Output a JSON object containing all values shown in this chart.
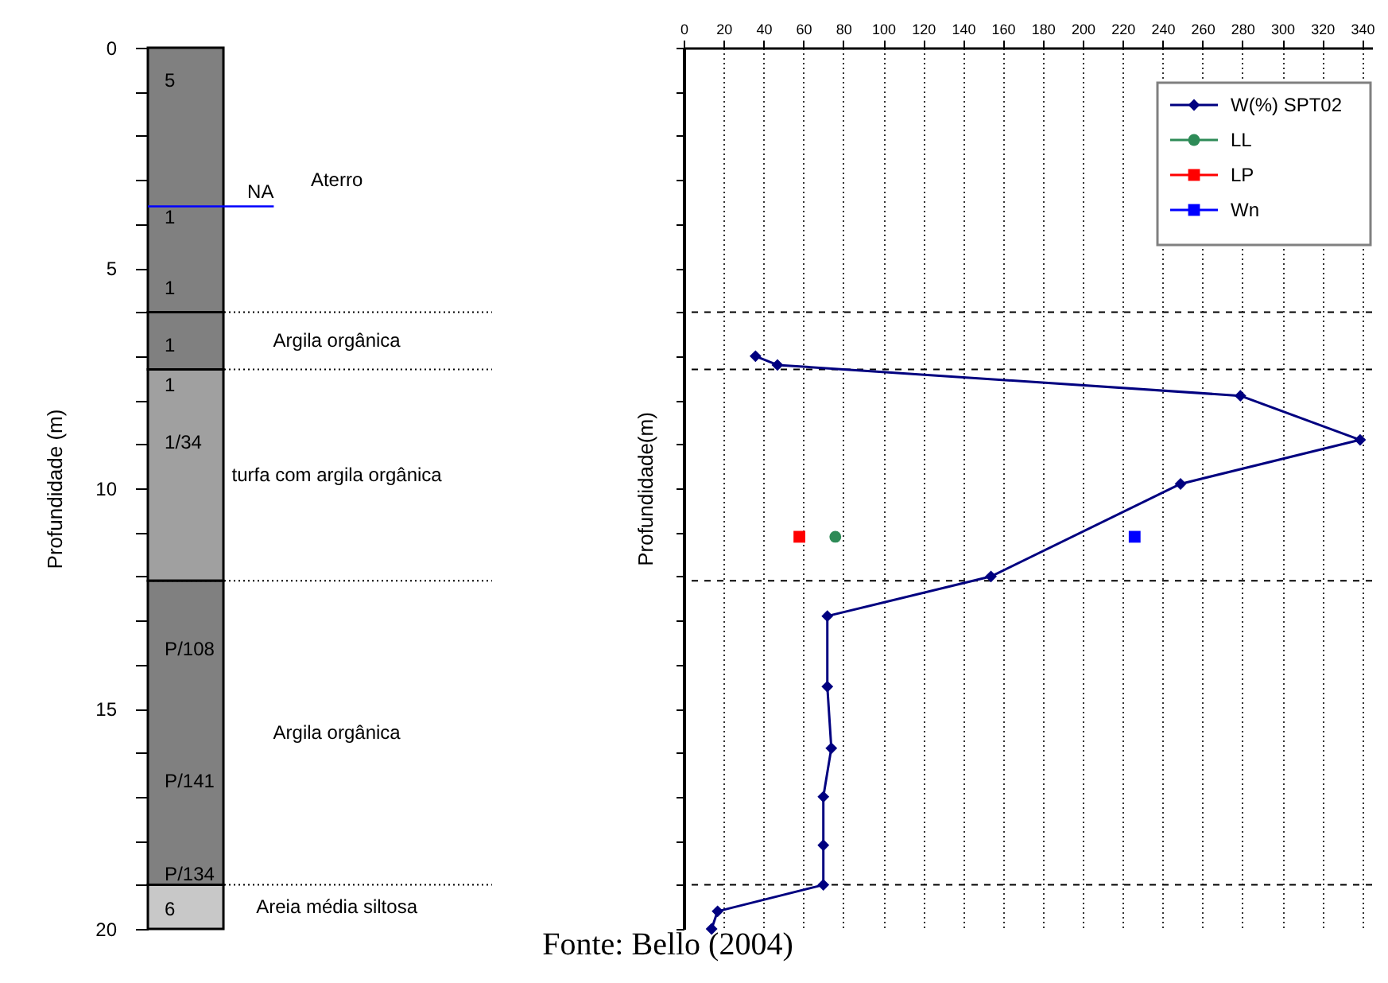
{
  "chart_data": [
    {
      "type": "bar",
      "stacked": true,
      "categories": [
        null
      ],
      "ylabel": "Profundidade (m)",
      "ylim": [
        20,
        0
      ],
      "yticks": [
        0,
        {
          "value": 1,
          "label": null
        },
        {
          "value": 2,
          "label": null
        },
        {
          "value": 3,
          "label": null
        },
        {
          "value": 4,
          "label": null
        },
        5,
        {
          "value": 6,
          "label": null
        },
        {
          "value": 7,
          "label": null
        },
        {
          "value": 8,
          "label": null
        },
        {
          "value": 9,
          "label": null
        },
        10,
        {
          "value": 11,
          "label": null
        },
        {
          "value": 12,
          "label": null
        },
        {
          "value": 13,
          "label": null
        },
        {
          "value": 14,
          "label": null
        },
        15,
        {
          "value": 16,
          "label": null
        },
        {
          "value": 17,
          "label": null
        },
        {
          "value": 18,
          "label": null
        },
        {
          "value": 19,
          "label": null
        },
        20
      ],
      "series": [
        {
          "name": "Aterro",
          "color": "#808080",
          "values": [
            6.0
          ]
        },
        {
          "name": "Argila orgânica",
          "color": "#808080",
          "values": [
            1.3
          ]
        },
        {
          "name": "turfa com argila orgânica",
          "color": "#a0a0a0",
          "values": [
            4.8
          ]
        },
        {
          "name": "Argila orgânica",
          "color": "#808080",
          "values": [
            6.9
          ]
        },
        {
          "name": "Areia média siltosa",
          "color": "#c8c8c8",
          "values": [
            1.0
          ]
        }
      ],
      "annotations": [
        "5",
        "1",
        "1",
        "1",
        "1",
        "1/34",
        "P/108",
        "P/141",
        "P/134",
        "6"
      ],
      "ref_lines": [
        {
          "axis": "y",
          "value": 3.6,
          "label": "NA",
          "color": "#0000ff",
          "line_style": "solid"
        },
        {
          "axis": "y",
          "value": 6.0,
          "line_style": "dotted"
        },
        {
          "axis": "y",
          "value": 7.3,
          "line_style": "dotted"
        },
        {
          "axis": "y",
          "value": 12.1,
          "line_style": "dotted"
        },
        {
          "axis": "y",
          "value": 19.0,
          "line_style": "dotted"
        }
      ]
    },
    {
      "type": "line",
      "ylabel": "Profundidade(m)",
      "xlim": [
        0,
        345
      ],
      "ylim": [
        20,
        0
      ],
      "xticks": [
        0,
        20,
        40,
        60,
        80,
        100,
        120,
        140,
        160,
        180,
        200,
        220,
        240,
        260,
        280,
        300,
        320,
        340
      ],
      "tick_labels": "x",
      "grid": "x",
      "legend": "top right",
      "series": [
        {
          "name": "W(%) SPT02",
          "type": "line",
          "marker": "diamond",
          "color": "#000080",
          "x": [
            36,
            47,
            279,
            339,
            249,
            154,
            72,
            72,
            74,
            70,
            70,
            70,
            17,
            14
          ],
          "values": [
            7.0,
            7.2,
            7.9,
            8.9,
            9.9,
            12.0,
            12.9,
            14.5,
            15.9,
            17.0,
            18.1,
            19.0,
            19.6,
            20.0
          ]
        },
        {
          "name": "LL",
          "type": "scatter",
          "marker": "circle",
          "color": "#2e8b57",
          "x": [
            76
          ],
          "values": [
            11.1
          ]
        },
        {
          "name": "LP",
          "type": "scatter",
          "marker": "square",
          "color": "#ff0000",
          "x": [
            58
          ],
          "values": [
            11.1
          ]
        },
        {
          "name": "Wn",
          "type": "scatter",
          "marker": "square",
          "color": "#0000ff",
          "x": [
            226
          ],
          "values": [
            11.1
          ]
        }
      ],
      "ref_lines": [
        {
          "axis": "y",
          "value": 6.0,
          "line_style": "dashed"
        },
        {
          "axis": "y",
          "value": 7.3,
          "line_style": "dashed"
        },
        {
          "axis": "y",
          "value": 12.1,
          "line_style": "dashed"
        },
        {
          "axis": "y",
          "value": 19.0,
          "line_style": "dashed"
        }
      ],
      "annotations": [
        "Fonte: Bello (2004)"
      ]
    }
  ]
}
